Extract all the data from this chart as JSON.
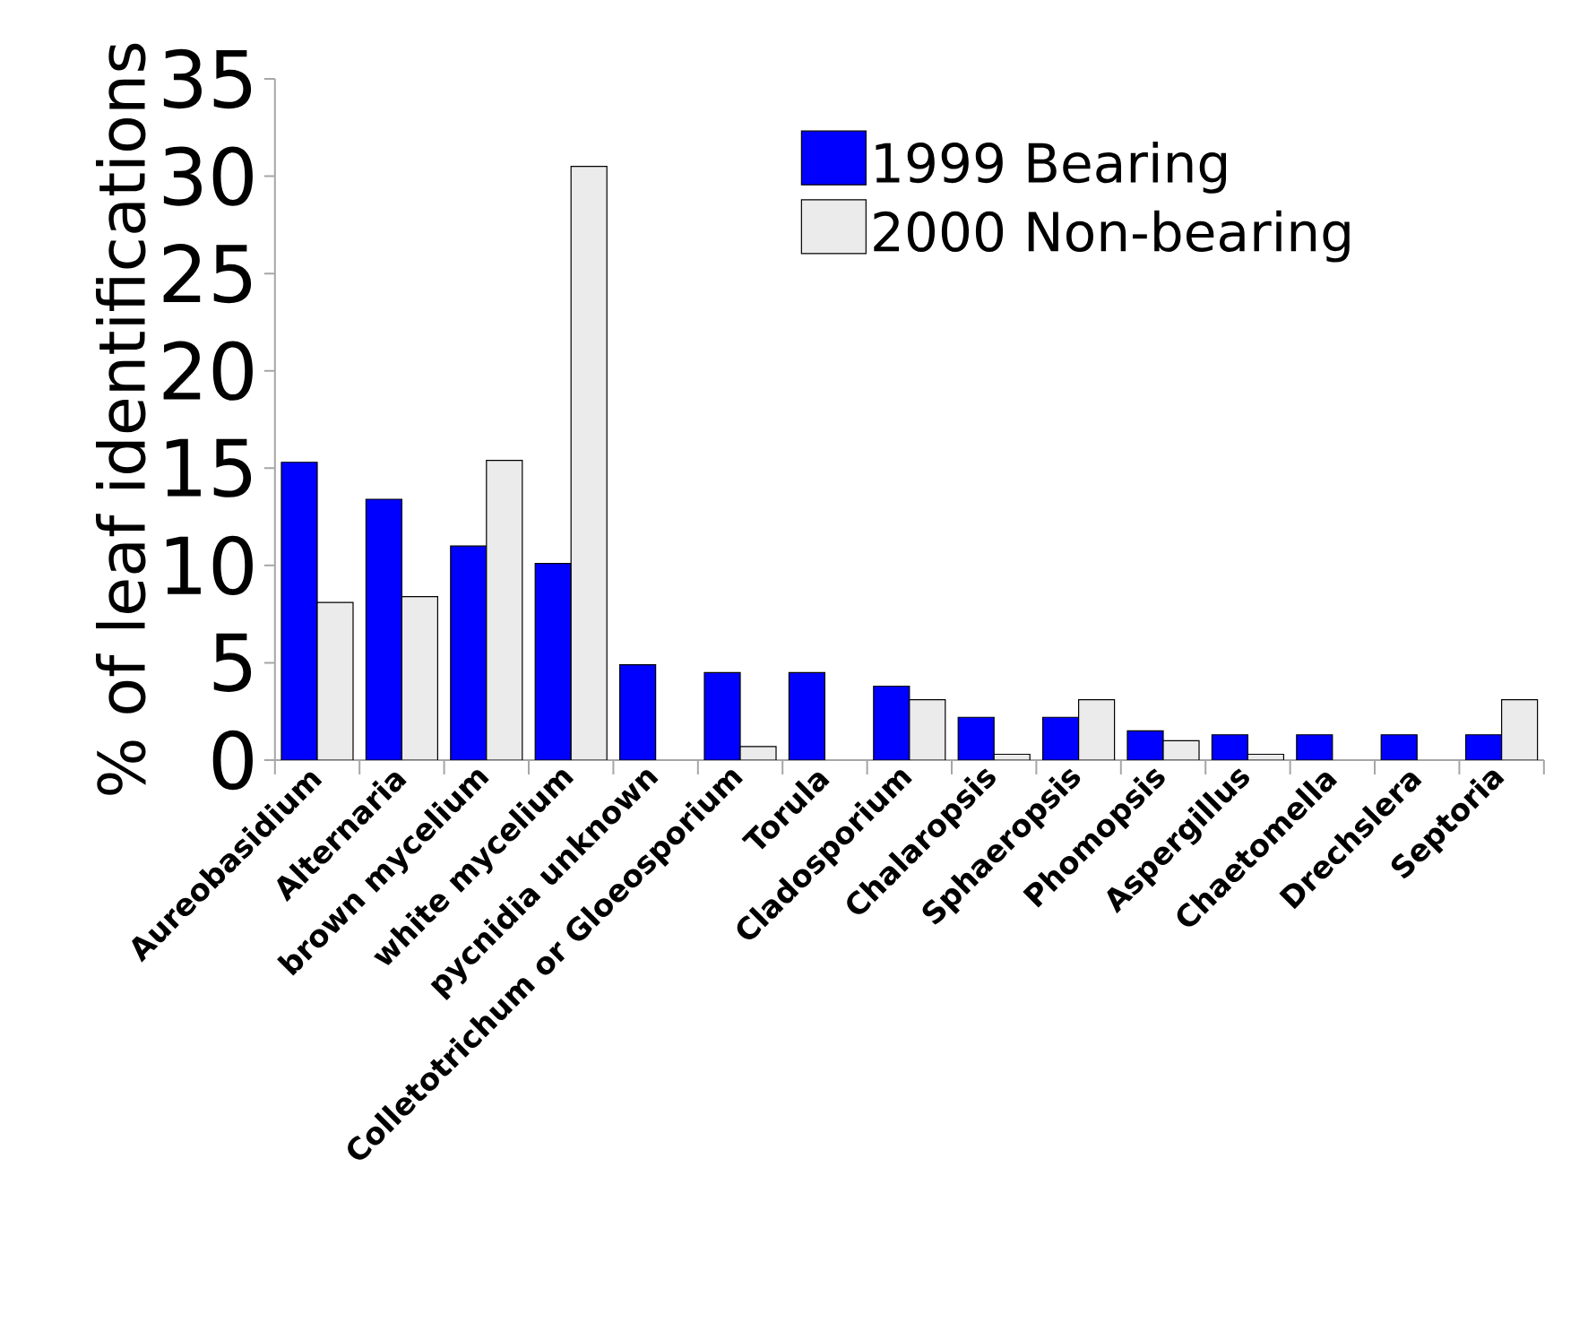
{
  "chart_data": {
    "type": "bar",
    "ylabel": "% of leaf identifications",
    "categories": [
      "Aureobasidium",
      "Alternaria",
      "brown mycelium",
      "white mycelium",
      "pycnidia unknown",
      "Colletotrichum or Gloeosporium",
      "Torula",
      "Cladosporium",
      "Chalaropsis",
      "Sphaeropsis",
      "Phomopsis",
      "Aspergillus",
      "Chaetomella",
      "Drechslera",
      "Septoria"
    ],
    "series": [
      {
        "name": "1999 Bearing",
        "color": "#0000ff",
        "values": [
          15.3,
          13.4,
          11.0,
          10.1,
          4.9,
          4.5,
          4.5,
          3.8,
          2.2,
          2.2,
          1.5,
          1.3,
          1.3,
          1.3,
          1.3
        ]
      },
      {
        "name": "2000 Non-bearing",
        "color": "#ebebeb",
        "values": [
          8.1,
          8.4,
          15.4,
          30.5,
          null,
          0.7,
          null,
          3.1,
          0.3,
          3.1,
          1.0,
          0.3,
          null,
          null,
          3.1
        ]
      }
    ],
    "ylim": [
      0,
      35
    ],
    "yticks": [
      0,
      5,
      10,
      15,
      20,
      25,
      30,
      35
    ],
    "legend": "top right",
    "grid": false
  }
}
